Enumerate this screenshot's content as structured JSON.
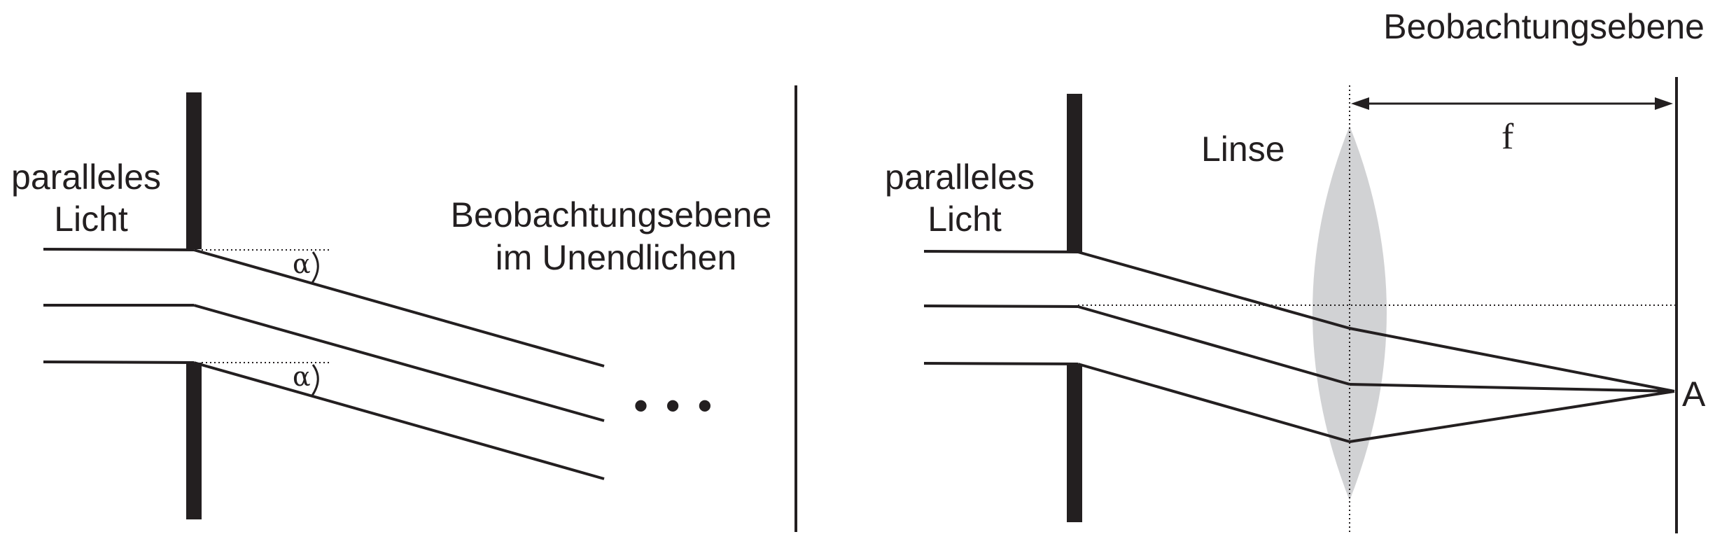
{
  "left": {
    "light_label": [
      "paralleles",
      "Licht"
    ],
    "angle_label": "α",
    "screen_label": [
      "Beobachtungsebene",
      "im Unendlichen"
    ],
    "ellipsis": "• • •"
  },
  "right": {
    "light_label": [
      "paralleles",
      "Licht"
    ],
    "lens_label": "Linse",
    "focal_label": "f",
    "screen_label": "Beobachtungsebene",
    "point_label": "A"
  },
  "colors": {
    "ink": "#231f20",
    "lens": "#d1d2d4"
  }
}
